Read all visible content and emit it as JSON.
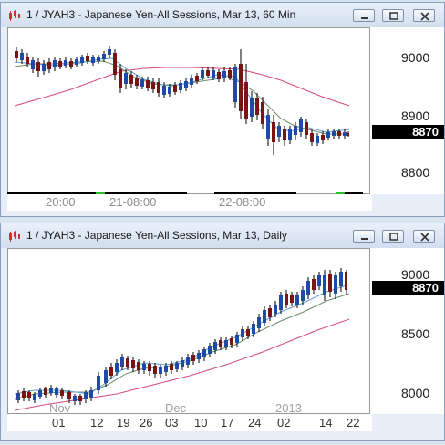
{
  "top_window": {
    "title": "1 / JYAH3 - Japanese Yen-All Sessions, Mar 13, 60 Min",
    "price_axis": [
      "9000",
      "8900",
      "8800"
    ],
    "last_price": "8870",
    "time_labels": [
      "20:00",
      "21-08:00",
      "22-08:00"
    ]
  },
  "bottom_window": {
    "title": "1 / JYAH3 - Japanese Yen-All Sessions, Mar 13, Daily",
    "price_axis": [
      "9000",
      "8500",
      "8000"
    ],
    "last_price": "8870",
    "month_labels": [
      "Nov",
      "Dec",
      "2013"
    ],
    "day_labels": [
      "01",
      "12",
      "19",
      "26",
      "03",
      "10",
      "17",
      "24",
      "02",
      "14",
      "22"
    ]
  },
  "colors": {
    "up_candle": "#1f4aa8",
    "down_candle": "#7a1414",
    "ma_short": "#5f9fd4",
    "ma_mid": "#6b8e6b",
    "ma_long": "#d64a7e"
  },
  "icons": [
    "chart-app-icon",
    "minimize-icon",
    "restore-icon",
    "close-icon"
  ]
}
